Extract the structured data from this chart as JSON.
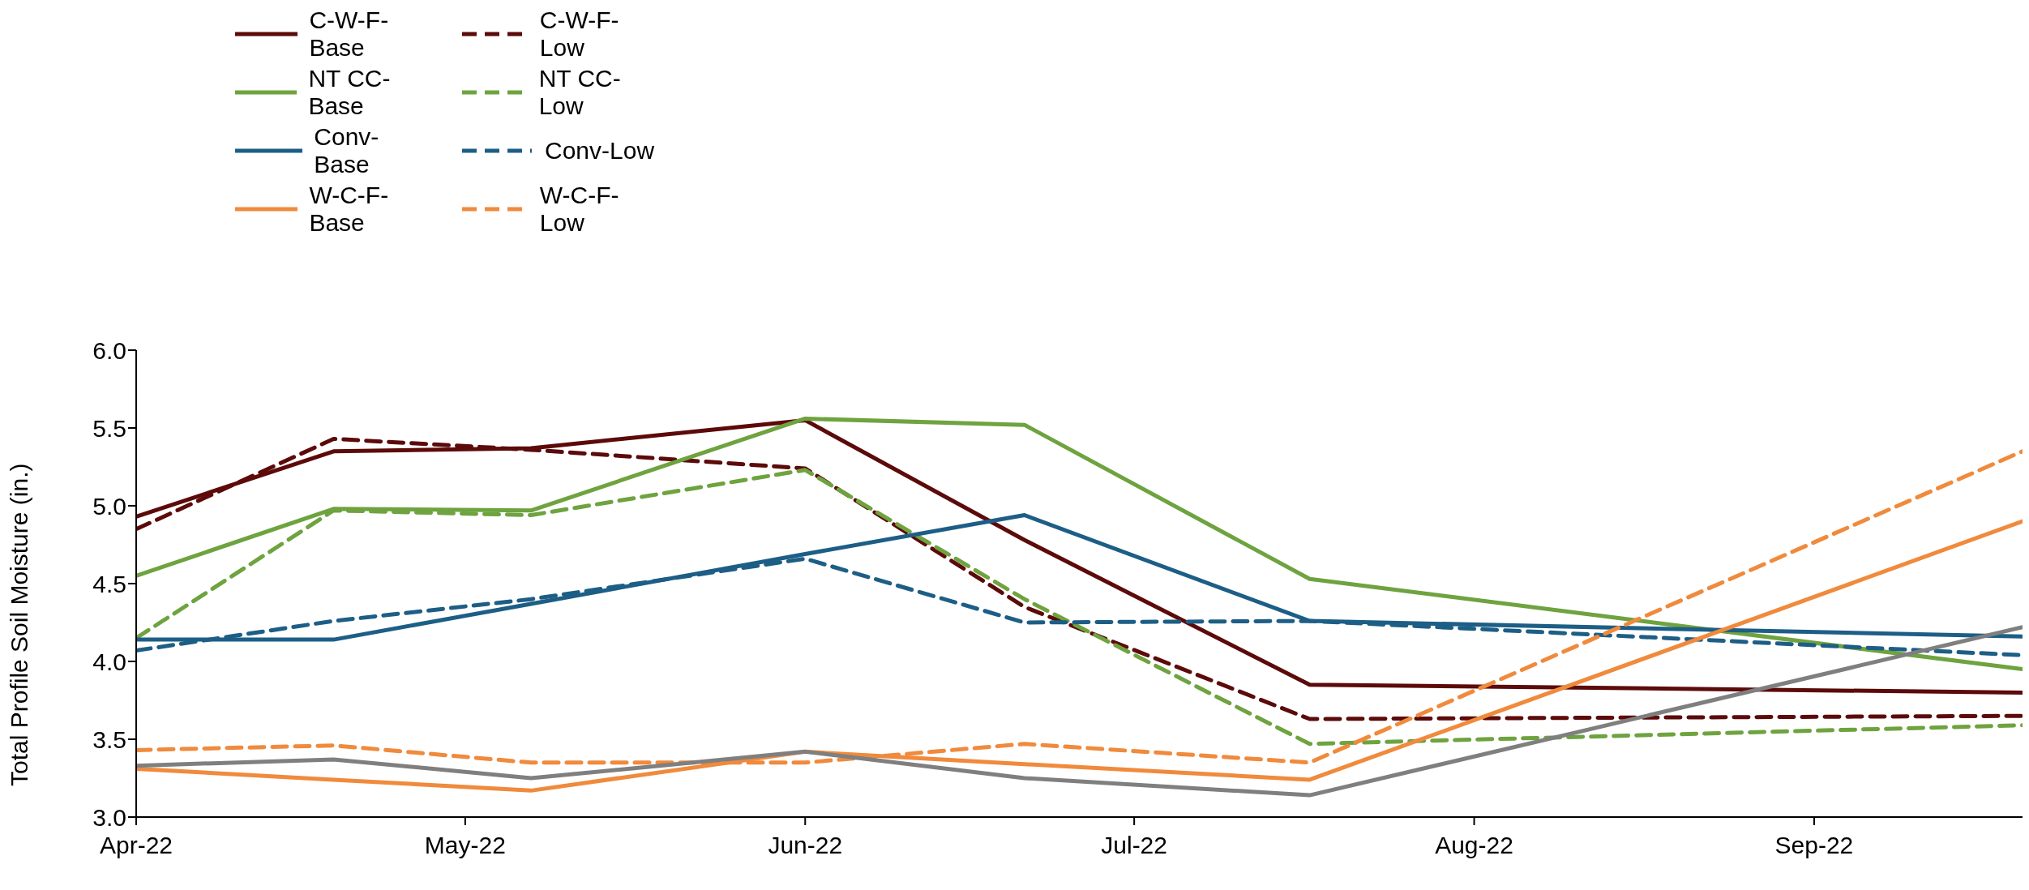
{
  "chart_data": {
    "type": "line",
    "ylabel": "Total Profile Soil Moisture (in.)",
    "x": [
      "2022-04-01",
      "2022-04-19",
      "2022-05-07",
      "2022-06-01",
      "2022-06-21",
      "2022-07-17",
      "2022-09-20"
    ],
    "xlim": [
      "2022-04-01",
      "2022-09-20"
    ],
    "xticks": [
      {
        "value": "2022-04-01",
        "label": "Apr-22"
      },
      {
        "value": "2022-05-01",
        "label": "May-22"
      },
      {
        "value": "2022-06-01",
        "label": "Jun-22"
      },
      {
        "value": "2022-07-01",
        "label": "Jul-22"
      },
      {
        "value": "2022-08-01",
        "label": "Aug-22"
      },
      {
        "value": "2022-09-01",
        "label": "Sep-22"
      }
    ],
    "ylim": [
      3,
      6
    ],
    "yticks": [
      {
        "value": 3,
        "label": "3.0"
      },
      {
        "value": 3.5,
        "label": "3.5"
      },
      {
        "value": 4,
        "label": "4.0"
      },
      {
        "value": 4.5,
        "label": "4.5"
      },
      {
        "value": 5,
        "label": "5.0"
      },
      {
        "value": 5.5,
        "label": "5.5"
      },
      {
        "value": 6,
        "label": "6.0"
      }
    ],
    "grid": false,
    "legend": "top left",
    "marker": "none",
    "series": [
      {
        "name": "C-W-F-Base",
        "color": "#5c0a0a",
        "line_style": "solid",
        "values": [
          4.93,
          5.35,
          5.37,
          5.55,
          4.78,
          3.85,
          3.8
        ]
      },
      {
        "name": "C-W-F-Low",
        "color": "#5c0a0a",
        "line_style": "dashed",
        "values": [
          4.85,
          5.43,
          5.36,
          5.24,
          4.35,
          3.63,
          3.65
        ]
      },
      {
        "name": "NT CC-Base",
        "color": "#6ea33f",
        "line_style": "solid",
        "values": [
          4.55,
          4.98,
          4.97,
          5.56,
          5.52,
          4.53,
          3.95
        ]
      },
      {
        "name": "NT CC-Low",
        "color": "#6ea33f",
        "line_style": "dashed",
        "values": [
          4.15,
          4.97,
          4.94,
          5.23,
          4.4,
          3.47,
          3.59
        ]
      },
      {
        "name": "Conv-Base",
        "color": "#1d5e86",
        "line_style": "solid",
        "values": [
          4.14,
          4.14,
          4.37,
          4.69,
          4.94,
          4.26,
          4.16
        ]
      },
      {
        "name": "Conv-Low",
        "color": "#1d5e86",
        "line_style": "dashed",
        "values": [
          4.07,
          4.26,
          4.4,
          4.66,
          4.25,
          4.26,
          4.04
        ]
      },
      {
        "name": "W-C-F-Base",
        "color": "#f08a3c",
        "line_style": "solid",
        "values": [
          3.31,
          3.24,
          3.17,
          3.42,
          3.34,
          3.24,
          4.9
        ]
      },
      {
        "name": "W-C-F-Low",
        "color": "#f08a3c",
        "line_style": "dashed",
        "values": [
          3.43,
          3.46,
          3.35,
          3.35,
          3.47,
          3.35,
          5.35
        ]
      },
      {
        "color": "#7f7f7f",
        "line_style": "solid",
        "values": [
          3.33,
          3.37,
          3.25,
          3.42,
          3.25,
          3.14,
          4.22
        ]
      }
    ]
  }
}
